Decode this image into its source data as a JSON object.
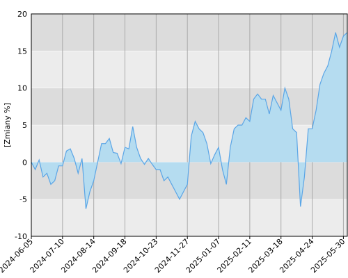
{
  "chart_data": {
    "type": "area",
    "ylabel": "[Zmiany %]",
    "categories": [
      "2024-06-05",
      null,
      null,
      null,
      null,
      null,
      null,
      null,
      "2024-07-10",
      null,
      null,
      null,
      null,
      null,
      null,
      null,
      "2024-08-14",
      null,
      null,
      null,
      null,
      null,
      null,
      null,
      "2024-09-18",
      null,
      null,
      null,
      null,
      null,
      null,
      null,
      "2024-10-23",
      null,
      null,
      null,
      null,
      null,
      null,
      null,
      "2024-11-27",
      null,
      null,
      null,
      null,
      null,
      null,
      null,
      "2025-01-07",
      null,
      null,
      null,
      null,
      null,
      null,
      null,
      "2025-02-11",
      null,
      null,
      null,
      null,
      null,
      null,
      null,
      "2025-03-18",
      null,
      null,
      null,
      null,
      null,
      null,
      null,
      "2025-04-24",
      null,
      null,
      null,
      null,
      null,
      null,
      null,
      "2025-05-30",
      null
    ],
    "values": [
      0,
      -1.0,
      0.3,
      -2.0,
      -1.5,
      -3.0,
      -2.5,
      -0.5,
      -0.5,
      1.5,
      1.8,
      0.5,
      -1.5,
      0.5,
      -6.3,
      -4.0,
      -2.5,
      0.0,
      2.5,
      2.5,
      3.2,
      1.3,
      1.2,
      -0.2,
      2.0,
      1.8,
      4.8,
      2.0,
      0.5,
      -0.3,
      0.5,
      -0.3,
      -1.0,
      -1.0,
      -2.5,
      -2.0,
      -3.0,
      -4.0,
      -5.0,
      -4.0,
      -3.0,
      3.5,
      5.5,
      4.5,
      4.0,
      2.5,
      -0.2,
      1.0,
      2.0,
      -1.0,
      -3.0,
      2.0,
      4.5,
      5.0,
      5.0,
      6.0,
      5.5,
      8.5,
      9.2,
      8.5,
      8.5,
      6.5,
      9.0,
      8.0,
      7.0,
      10.0,
      8.5,
      4.5,
      4.0,
      -6.0,
      -2.0,
      4.5,
      4.5,
      7.0,
      10.5,
      12.0,
      13.0,
      15.0,
      17.5,
      15.5,
      17.0,
      17.5
    ],
    "color": "#5aa5e6",
    "fill": "#b5dcf0",
    "ylim": [
      -10,
      20
    ],
    "yticks": [
      -10,
      -5,
      0,
      5,
      10,
      15,
      20
    ],
    "grid": true
  }
}
